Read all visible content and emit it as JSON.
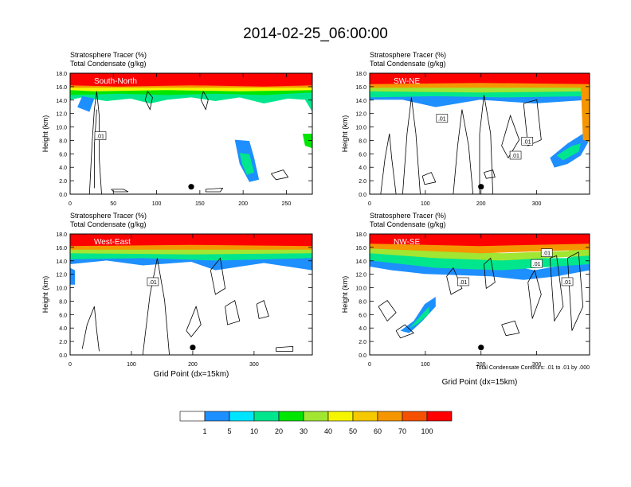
{
  "title": "2014-02-25_06:00:00",
  "panel_header": {
    "line1": "Stratosphere Tracer   (%)",
    "line2": "Total Condensate   (g/kg)"
  },
  "ylabel": "Height (km)",
  "xlabel": "Grid Point (dx=15km)",
  "contour_note": "Total Condensate Contours: .01 to .01 by .000",
  "colors": {
    "levels": [
      "#ffffff",
      "#1e8fff",
      "#00e5ff",
      "#00e68c",
      "#00e600",
      "#a0e632",
      "#f5f500",
      "#f5c800",
      "#f59600",
      "#f55000",
      "#ff0000"
    ],
    "contour": "#000000",
    "marker": "#000000"
  },
  "colorbar": {
    "labels": [
      "1",
      "5",
      "10",
      "20",
      "30",
      "40",
      "50",
      "60",
      "70",
      "100"
    ]
  },
  "chart_data": [
    {
      "type": "heatmap",
      "name": "South-North",
      "ylim": [
        0,
        18
      ],
      "xlim": [
        0,
        280
      ],
      "yticks": [
        "0.0",
        "2.0",
        "4.0",
        "6.0",
        "8.0",
        "10.0",
        "12.0",
        "14.0",
        "16.0",
        "18.0"
      ],
      "xticks": [
        {
          "v": 0,
          "label": "0"
        },
        {
          "v": 50,
          "label": "50"
        },
        {
          "v": 100,
          "label": "100"
        },
        {
          "v": 150,
          "label": "150"
        },
        {
          "v": 200,
          "label": "200"
        },
        {
          "v": 250,
          "label": "250"
        }
      ],
      "contour_labels": [
        {
          "x": 35,
          "y": 8.7,
          "label": ".01"
        }
      ],
      "marker": {
        "x": 140,
        "y": 1.1
      }
    },
    {
      "type": "heatmap",
      "name": "SW-NE",
      "ylim": [
        0,
        18
      ],
      "xlim": [
        0,
        395
      ],
      "yticks": [
        "0.0",
        "2.0",
        "4.0",
        "6.0",
        "8.0",
        "10.0",
        "12.0",
        "14.0",
        "16.0",
        "18.0"
      ],
      "xticks": [
        {
          "v": 0,
          "label": "0"
        },
        {
          "v": 100,
          "label": "100"
        },
        {
          "v": 200,
          "label": "200"
        },
        {
          "v": 300,
          "label": "300"
        }
      ],
      "contour_labels": [
        {
          "x": 130,
          "y": 11.3,
          "label": ".01"
        },
        {
          "x": 283,
          "y": 7.9,
          "label": ".01"
        },
        {
          "x": 262,
          "y": 5.8,
          "label": ".01"
        }
      ],
      "marker": {
        "x": 200,
        "y": 1.1
      }
    },
    {
      "type": "heatmap",
      "name": "West-East",
      "ylim": [
        0,
        18
      ],
      "xlim": [
        0,
        395
      ],
      "yticks": [
        "0.0",
        "2.0",
        "4.0",
        "6.0",
        "8.0",
        "10.0",
        "12.0",
        "14.0",
        "16.0",
        "18.0"
      ],
      "xticks": [
        {
          "v": 0,
          "label": "0"
        },
        {
          "v": 100,
          "label": "100"
        },
        {
          "v": 200,
          "label": "200"
        },
        {
          "v": 300,
          "label": "300"
        }
      ],
      "contour_labels": [
        {
          "x": 135,
          "y": 10.9,
          "label": ".01"
        }
      ],
      "marker": {
        "x": 200,
        "y": 1.1
      }
    },
    {
      "type": "heatmap",
      "name": "NW-SE",
      "ylim": [
        0,
        18
      ],
      "xlim": [
        0,
        395
      ],
      "yticks": [
        "0.0",
        "2.0",
        "4.0",
        "6.0",
        "8.0",
        "10.0",
        "12.0",
        "14.0",
        "16.0",
        "18.0"
      ],
      "xticks": [
        {
          "v": 0,
          "label": "0"
        },
        {
          "v": 100,
          "label": "100"
        },
        {
          "v": 200,
          "label": "200"
        },
        {
          "v": 300,
          "label": "300"
        }
      ],
      "contour_labels": [
        {
          "x": 168,
          "y": 10.9,
          "label": ".01"
        },
        {
          "x": 318,
          "y": 15.2,
          "label": ".01"
        },
        {
          "x": 300,
          "y": 13.6,
          "label": ".01"
        },
        {
          "x": 355,
          "y": 10.9,
          "label": ".01"
        }
      ],
      "marker": {
        "x": 200,
        "y": 1.1
      }
    }
  ]
}
